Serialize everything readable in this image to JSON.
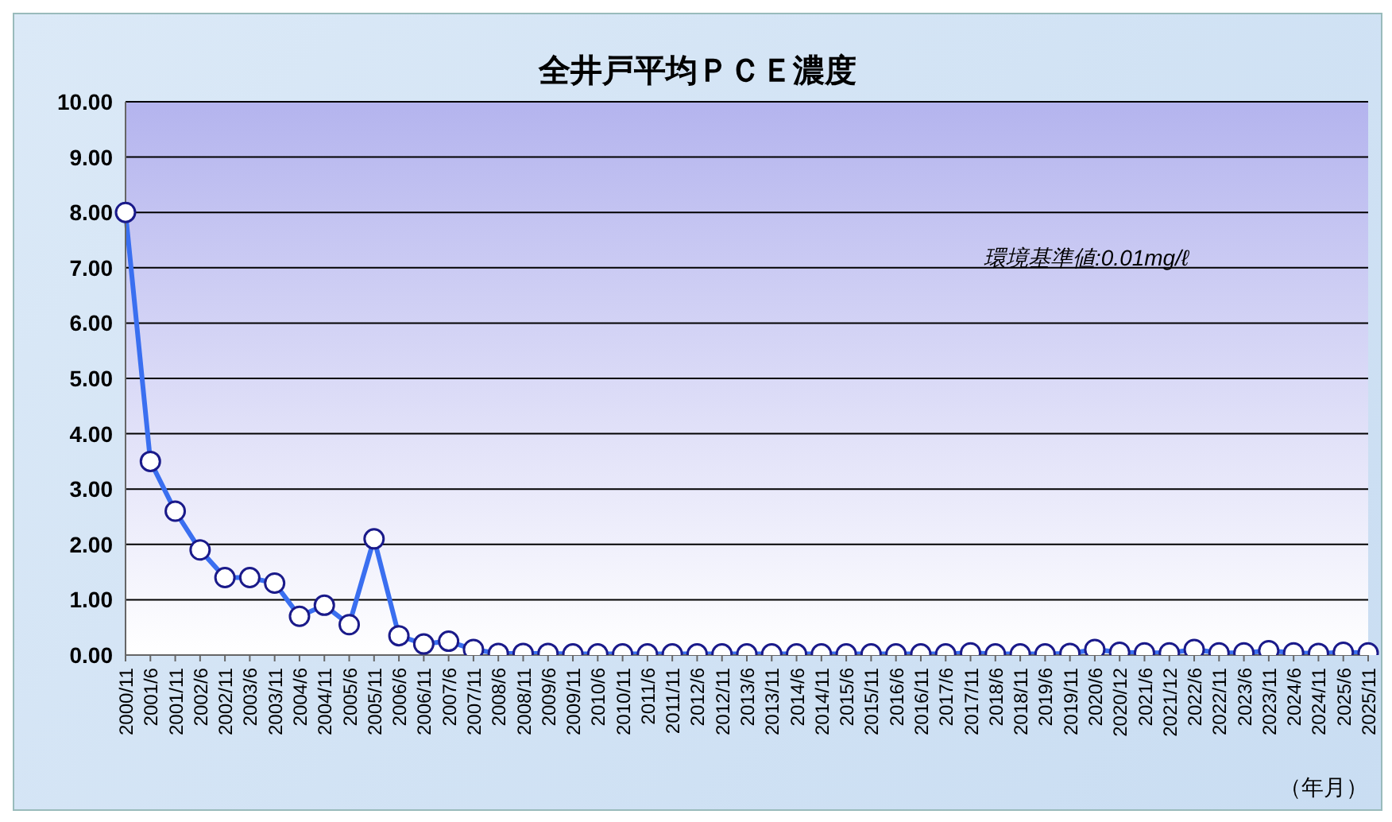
{
  "chart_data": {
    "type": "line",
    "title": "全井戸平均ＰＣＥ濃度",
    "xlabel": "（年月）",
    "annotations": [
      "環境基準値:0.01mg/ℓ"
    ],
    "categories": [
      "2000/11",
      "2001/6",
      "2001/11",
      "2002/6",
      "2002/11",
      "2003/6",
      "2003/11",
      "2004/6",
      "2004/11",
      "2005/6",
      "2005/11",
      "2006/6",
      "2006/11",
      "2007/6",
      "2007/11",
      "2008/6",
      "2008/11",
      "2009/6",
      "2009/11",
      "2010/6",
      "2010/11",
      "2011/6",
      "2011/11",
      "2012/6",
      "2012/11",
      "2013/6",
      "2013/11",
      "2014/6",
      "2014/11",
      "2015/6",
      "2015/11",
      "2016/6",
      "2016/11",
      "2017/6",
      "2017/11",
      "2018/6",
      "2018/11",
      "2019/6",
      "2019/11",
      "2020/6",
      "2020/12",
      "2021/6",
      "2021/12",
      "2022/6",
      "2022/11",
      "2023/6",
      "2023/11",
      "2024/6",
      "2024/11",
      "2025/6",
      "2025/11"
    ],
    "series": [
      {
        "color": "#3a6ff0",
        "values": [
          8.0,
          3.5,
          2.6,
          1.9,
          1.4,
          1.4,
          1.3,
          0.7,
          0.9,
          0.55,
          2.1,
          0.35,
          0.2,
          0.25,
          0.1,
          0.03,
          0.03,
          0.03,
          0.02,
          0.02,
          0.02,
          0.02,
          0.02,
          0.02,
          0.02,
          0.02,
          0.02,
          0.02,
          0.02,
          0.02,
          0.02,
          0.02,
          0.02,
          0.02,
          0.04,
          0.02,
          0.02,
          0.02,
          0.03,
          0.1,
          0.05,
          0.04,
          0.04,
          0.1,
          0.04,
          0.04,
          0.08,
          0.04,
          0.03,
          0.05,
          0.04
        ]
      }
    ],
    "ylim": [
      0,
      10
    ],
    "yticks": [
      {
        "value": 0,
        "label": "0.00"
      },
      {
        "value": 1,
        "label": "1.00"
      },
      {
        "value": 2,
        "label": "2.00"
      },
      {
        "value": 3,
        "label": "3.00"
      },
      {
        "value": 4,
        "label": "4.00"
      },
      {
        "value": 5,
        "label": "5.00"
      },
      {
        "value": 6,
        "label": "6.00"
      },
      {
        "value": 7,
        "label": "7.00"
      },
      {
        "value": 8,
        "label": "8.00"
      },
      {
        "value": 9,
        "label": "9.00"
      },
      {
        "value": 10,
        "label": "10.00"
      }
    ],
    "grid": "y",
    "marker": "circle",
    "line_style": "solid",
    "legend": false
  }
}
